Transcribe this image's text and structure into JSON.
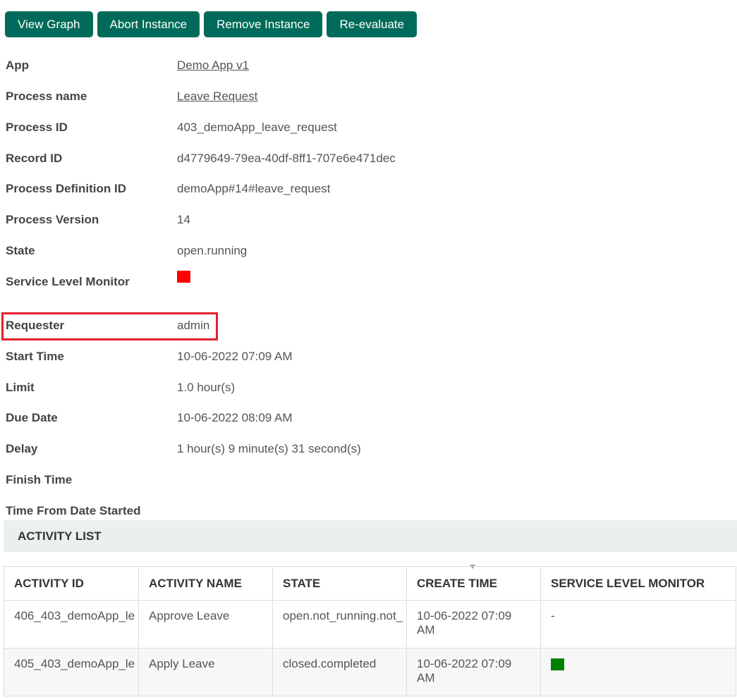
{
  "toolbar": {
    "buttons": [
      "View Graph",
      "Abort Instance",
      "Remove Instance",
      "Re-evaluate"
    ]
  },
  "details": [
    {
      "label": "App",
      "value": "Demo App v1",
      "link": true
    },
    {
      "label": "Process name",
      "value": "Leave Request",
      "link": true
    },
    {
      "label": "Process ID",
      "value": "403_demoApp_leave_request"
    },
    {
      "label": "Record ID",
      "value": "d4779649-79ea-40df-8ff1-707e6e471dec"
    },
    {
      "label": "Process Definition ID",
      "value": "demoApp#14#leave_request"
    },
    {
      "label": "Process Version",
      "value": "14"
    },
    {
      "label": "State",
      "value": "open.running"
    },
    {
      "label": "Service Level Monitor",
      "status_color": "#ff0000"
    },
    {
      "label": "Requester",
      "value": "admin"
    },
    {
      "label": "Start Time",
      "value": "10-06-2022 07:09 AM"
    },
    {
      "label": "Limit",
      "value": "1.0 hour(s)"
    },
    {
      "label": "Due Date",
      "value": "10-06-2022 08:09 AM"
    },
    {
      "label": "Delay",
      "value": "1 hour(s) 9 minute(s) 31 second(s)"
    },
    {
      "label": "Finish Time",
      "value": ""
    },
    {
      "label": "Time From Date Started",
      "value": ""
    }
  ],
  "activity_list": {
    "title": "ACTIVITY LIST",
    "columns": [
      "ACTIVITY ID",
      "ACTIVITY NAME",
      "STATE",
      "CREATE TIME",
      "SERVICE LEVEL MONITOR"
    ],
    "rows": [
      {
        "id": "406_403_demoApp_le",
        "name": "Approve Leave",
        "state": "open.not_running.not_",
        "create_time": "10-06-2022 07:09 AM",
        "slm": "-"
      },
      {
        "id": "405_403_demoApp_le",
        "name": "Apply Leave",
        "state": "closed.completed",
        "create_time": "10-06-2022 07:09 AM",
        "slm_color": "#008000"
      }
    ]
  },
  "colors": {
    "accent": "#006b5a",
    "highlight": "#e3202a"
  }
}
